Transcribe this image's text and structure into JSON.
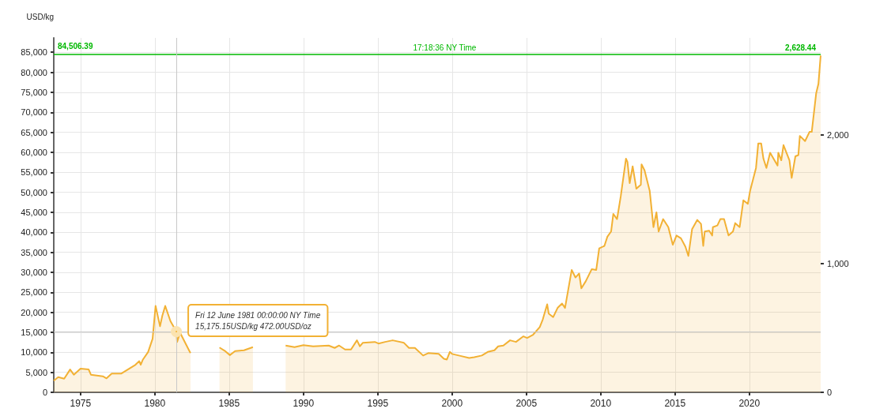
{
  "chart_data": {
    "type": "area",
    "ylabel": "USD/kg",
    "series": [
      {
        "color": "#f2b134",
        "x": [
          1973.2,
          1973.5,
          1973.9,
          1974.3,
          1974.55,
          1975.0,
          1975.55,
          1975.7,
          1976.5,
          1976.75,
          1977.1,
          1977.75,
          1978.7,
          1978.95,
          1979.05,
          1979.2,
          1979.55,
          1979.85,
          1980.05,
          1980.35,
          1980.5,
          1980.7,
          1981.05,
          1981.45,
          1981.5,
          1981.7,
          1982.3,
          1982.4,
          1983.3,
          1984.35,
          1984.7,
          1985.05,
          1985.4,
          1986.0,
          1986.6,
          1987.6,
          1988.8,
          1989.4,
          1990.0,
          1990.65,
          1991.7,
          1992.1,
          1992.4,
          1992.8,
          1993.2,
          1993.6,
          1993.8,
          1994.0,
          1994.8,
          1995.05,
          1995.5,
          1996.0,
          1996.75,
          1997.1,
          1997.5,
          1998.05,
          1998.4,
          1999.1,
          1999.45,
          1999.65,
          1999.85,
          2000.0,
          2000.45,
          2001.15,
          2001.5,
          2002.0,
          2002.4,
          2002.85,
          2003.1,
          2003.45,
          2003.9,
          2004.3,
          2004.8,
          2005.05,
          2005.45,
          2005.9,
          2006.1,
          2006.4,
          2006.5,
          2006.8,
          2007.1,
          2007.4,
          2007.6,
          2008.05,
          2008.3,
          2008.55,
          2008.7,
          2009.0,
          2009.4,
          2009.7,
          2009.9,
          2010.25,
          2010.45,
          2010.7,
          2010.85,
          2011.1,
          2011.35,
          2011.7,
          2011.8,
          2011.95,
          2012.15,
          2012.4,
          2012.7,
          2012.75,
          2012.95,
          2013.3,
          2013.55,
          2013.75,
          2013.9,
          2014.2,
          2014.55,
          2014.85,
          2015.1,
          2015.4,
          2015.7,
          2015.9,
          2016.15,
          2016.5,
          2016.75,
          2016.9,
          2017.0,
          2017.3,
          2017.5,
          2017.55,
          2017.85,
          2018.05,
          2018.3,
          2018.6,
          2018.9,
          2019.05,
          2019.35,
          2019.6,
          2019.9,
          2020.05,
          2020.45,
          2020.6,
          2020.8,
          2020.95,
          2021.15,
          2021.4,
          2021.9,
          2021.95,
          2022.15,
          2022.3,
          2022.7,
          2022.85,
          2023.1,
          2023.3,
          2023.4,
          2023.75,
          2024.05,
          2024.2,
          2024.5,
          2024.65,
          2024.8
        ],
        "values": [
          2900,
          3800,
          3400,
          5700,
          4400,
          5900,
          5700,
          4400,
          4000,
          3500,
          4700,
          4700,
          6900,
          7800,
          6900,
          8200,
          10100,
          13400,
          21600,
          16500,
          19100,
          21600,
          17800,
          15200,
          12600,
          14900,
          10500,
          9800,
          null,
          11200,
          10400,
          9300,
          10300,
          10500,
          11300,
          null,
          11700,
          11300,
          11800,
          11500,
          11700,
          11100,
          11700,
          10700,
          10700,
          13000,
          11500,
          12400,
          12600,
          12200,
          12600,
          13000,
          12400,
          11100,
          11100,
          9200,
          9800,
          9600,
          8400,
          8200,
          10100,
          9600,
          9200,
          8600,
          8800,
          9200,
          10100,
          10500,
          11500,
          11700,
          13000,
          12600,
          14000,
          13600,
          14400,
          16300,
          18200,
          22000,
          19700,
          18800,
          21100,
          22200,
          21100,
          30600,
          28700,
          29700,
          26000,
          27800,
          30800,
          30600,
          36000,
          36600,
          38900,
          40200,
          44600,
          43300,
          49000,
          58400,
          57600,
          52300,
          56500,
          50900,
          51900,
          57000,
          55500,
          50300,
          41300,
          45000,
          40200,
          43300,
          41300,
          36900,
          39200,
          38500,
          36400,
          34100,
          40800,
          43100,
          42100,
          36600,
          40200,
          40400,
          39200,
          41300,
          41700,
          43300,
          43300,
          39200,
          40200,
          42300,
          41300,
          48000,
          47100,
          50300,
          56100,
          62200,
          62200,
          58400,
          56100,
          59900,
          56700,
          59900,
          58000,
          61800,
          58000,
          53600,
          59000,
          59300,
          64100,
          62800,
          65100,
          65100,
          74800,
          77100,
          84200
        ]
      }
    ],
    "xlim": [
      1973.2,
      2024.8
    ],
    "xticks": [
      1975,
      1980,
      1985,
      1990,
      1995,
      2000,
      2005,
      2010,
      2015,
      2020
    ],
    "ylim": [
      0,
      88600
    ],
    "yticks": [
      0,
      {
        "value": 5000,
        "label": "5,000"
      },
      {
        "value": 10000,
        "label": "10,000"
      },
      {
        "value": 15000,
        "label": "15,000"
      },
      {
        "value": 20000,
        "label": "20,000"
      },
      {
        "value": 25000,
        "label": "25,000"
      },
      {
        "value": 30000,
        "label": "30,000"
      },
      {
        "value": 35000,
        "label": "35,000"
      },
      {
        "value": 40000,
        "label": "40,000"
      },
      {
        "value": 45000,
        "label": "45,000"
      },
      {
        "value": 50000,
        "label": "50,000"
      },
      {
        "value": 55000,
        "label": "55,000"
      },
      {
        "value": 60000,
        "label": "60,000"
      },
      {
        "value": 65000,
        "label": "65,000"
      },
      {
        "value": 70000,
        "label": "70,000"
      },
      {
        "value": 75000,
        "label": "75,000"
      },
      {
        "value": 80000,
        "label": "80,000"
      },
      {
        "value": 85000,
        "label": "85,000"
      }
    ],
    "y2lim": [
      0,
      2756
    ],
    "y2ticks": [
      0,
      {
        "value": 1000,
        "label": "1,000"
      },
      {
        "value": 2000,
        "label": "2,000"
      }
    ],
    "grid": true,
    "ref_lines": [
      {
        "axis": "y",
        "value": 84506.39,
        "label": "84,506.39",
        "color": "#00b800"
      },
      {
        "axis": "x",
        "value": 1981.45,
        "color": "#c8c8c8"
      },
      {
        "axis": "y",
        "value": 15175.15,
        "color": "#c8c8c8"
      }
    ],
    "annotations": [
      {
        "text": "17:18:36 NY Time",
        "x": 1999.5,
        "y": 84506.39
      },
      {
        "text": "2,628.44",
        "x": 2024.8,
        "y": 84506.39
      },
      {
        "text": "Fri 12 June 1981 00:00:00 NY Time\n15,175.15USD/kg 472.00USD/oz",
        "x": 1981.45,
        "y": 15175.15
      }
    ]
  }
}
